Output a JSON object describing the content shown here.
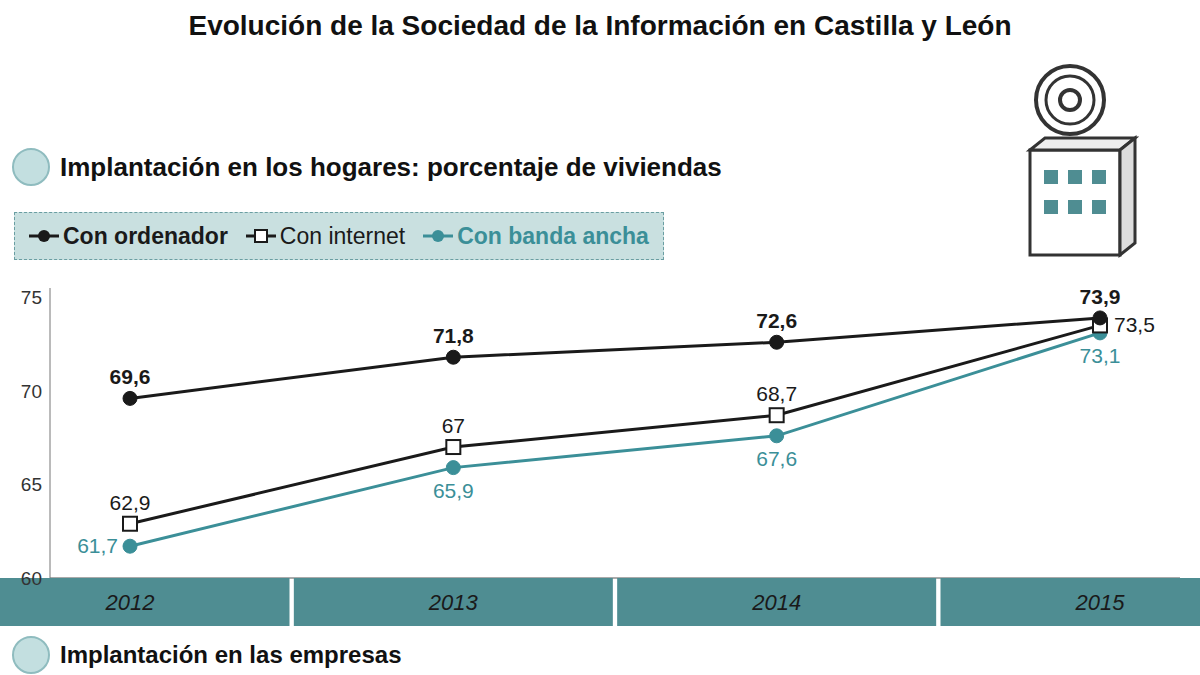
{
  "chart_data": {
    "type": "line",
    "title": "Evolución de la Sociedad de la Información en Castilla y León",
    "subtitle": "Implantación en los hogares: porcentaje de viviendas",
    "annotations": [
      "Implantación en las empresas"
    ],
    "categories": [
      "2012",
      "2013",
      "2014",
      "2015"
    ],
    "series": [
      {
        "name": "Con ordenador",
        "color": "#1a1a1a",
        "marker": "circle",
        "values": [
          69.6,
          71.8,
          72.6,
          73.9
        ],
        "value_labels": [
          "69,6",
          "71,8",
          "72,6",
          "73,9"
        ]
      },
      {
        "name": "Con internet",
        "color": "#1a1a1a",
        "marker": "square",
        "values": [
          62.9,
          67,
          68.7,
          73.5
        ],
        "value_labels": [
          "62,9",
          "67",
          "68,7",
          "73,5"
        ]
      },
      {
        "name": "Con banda ancha",
        "color": "#3b8f98",
        "marker": "circle",
        "values": [
          61.7,
          65.9,
          67.6,
          73.1
        ],
        "value_labels": [
          "61,7",
          "65,9",
          "67,6",
          "73,1"
        ]
      }
    ],
    "ylim": [
      60,
      75.5
    ],
    "yticks": [
      60,
      65,
      70,
      75
    ],
    "grid": false,
    "legend": "top-left",
    "data_labels": true
  }
}
